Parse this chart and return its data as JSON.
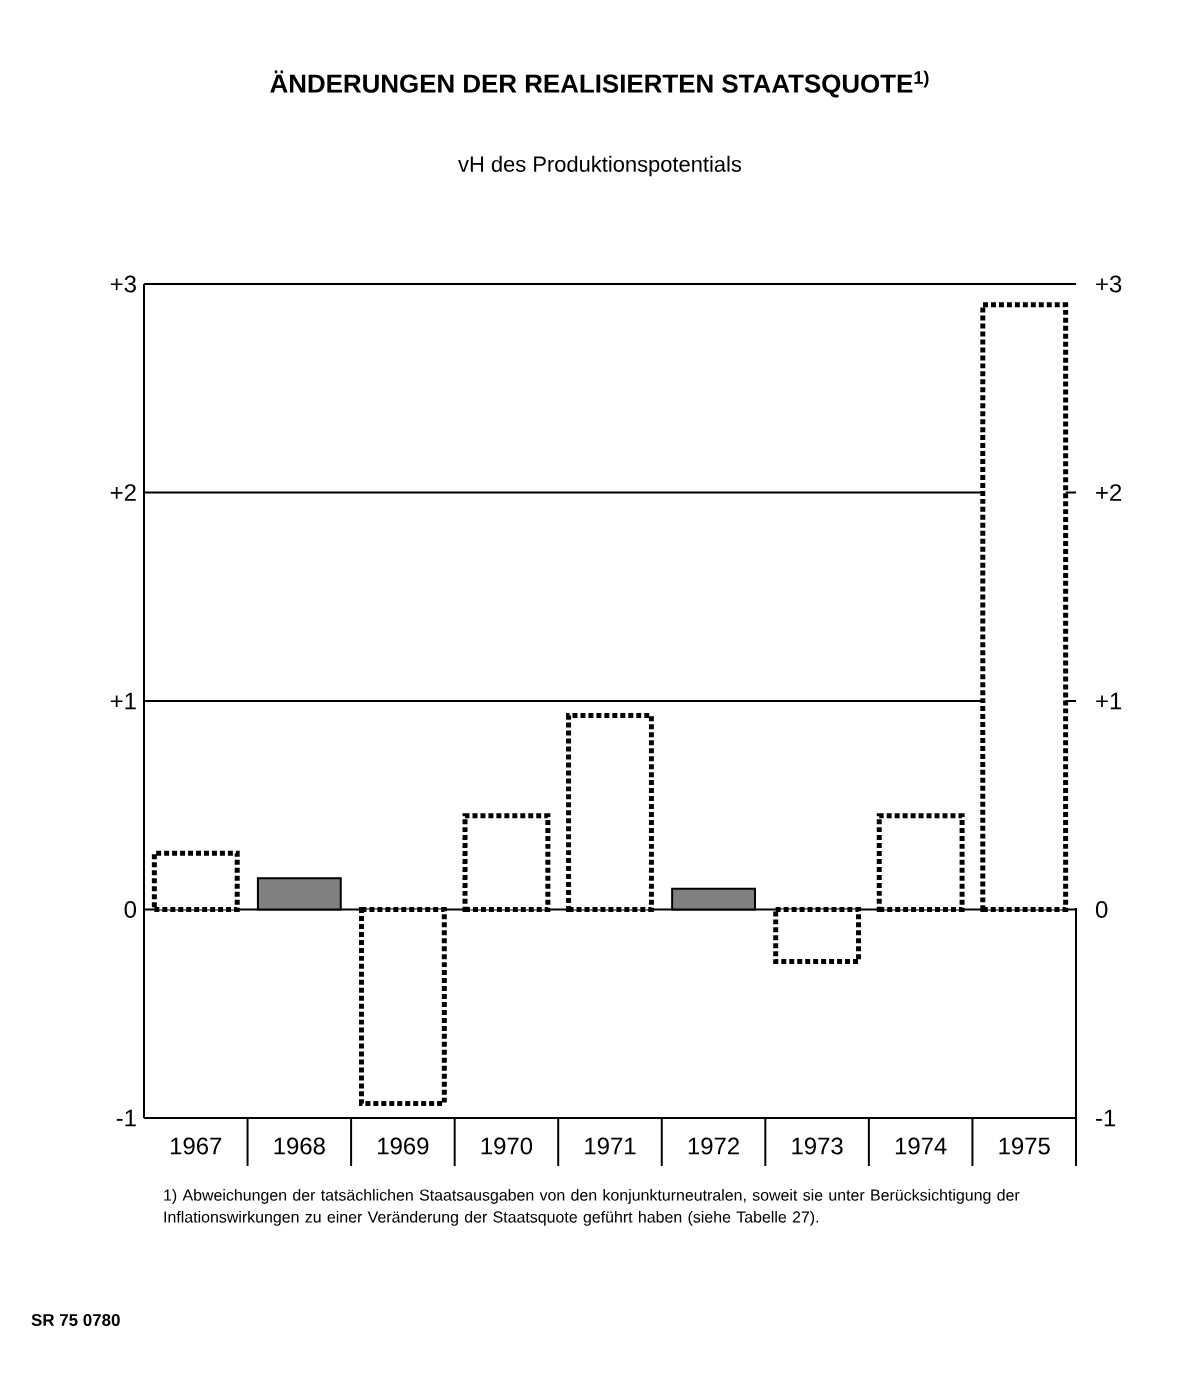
{
  "chart_data": {
    "type": "bar",
    "title": "ÄNDERUNGEN DER REALISIERTEN STAATSQUOTE$^{1)}$",
    "subtitle": "vH des Produktionspotentials",
    "categories": [
      "1967",
      "1968",
      "1969",
      "1970",
      "1971",
      "1972",
      "1973",
      "1974",
      "1975"
    ],
    "series": [
      {
        "color": "#000000",
        "line_style": "dotted",
        "values": [
          0.27,
          null,
          -0.93,
          0.45,
          0.93,
          null,
          -0.25,
          0.45,
          2.9
        ]
      },
      {
        "color": "#808080",
        "line_style": "solid",
        "values": [
          null,
          0.15,
          null,
          null,
          null,
          0.1,
          null,
          null,
          null
        ]
      }
    ],
    "ylim": [
      -1,
      3
    ],
    "yticks": [
      {
        "value": 3,
        "label": "+3"
      },
      {
        "value": 2,
        "label": "+2"
      },
      {
        "value": 1,
        "label": "+1"
      },
      0,
      -1
    ],
    "y2lim": [
      -1,
      3
    ],
    "y2ticks": [
      {
        "value": 3,
        "label": "+3"
      },
      {
        "value": 2,
        "label": "+2"
      },
      {
        "value": 1,
        "label": "+1"
      },
      0,
      -1
    ],
    "grid": "y",
    "annotations": [
      "1) Abweichungen der tatsächlichen Staatsausgaben von den konjunkturneutralen, soweit sie unter Berücksichtigung der Inflationswirkungen zu einer Veränderung der Staatsquote geführt haben (siehe Tabelle 27).",
      "SR 75 0780"
    ]
  }
}
